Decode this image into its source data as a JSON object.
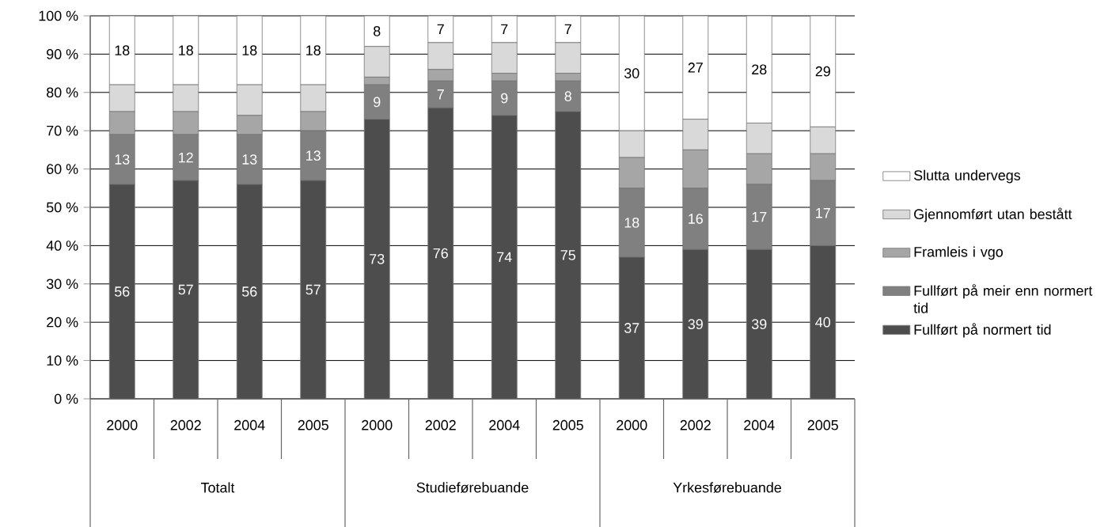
{
  "chart_data": {
    "type": "bar",
    "stacked": true,
    "categories": [
      "2000",
      "2002",
      "2004",
      "2005",
      "2000",
      "2002",
      "2004",
      "2005",
      "2000",
      "2002",
      "2004",
      "2005"
    ],
    "annotations": [
      "Totalt",
      "Studieførebuande",
      "Yrkesførebuande"
    ],
    "series": [
      {
        "name": "Fullført på normert tid",
        "color": "#4d4d4d",
        "values": [
          56,
          57,
          56,
          57,
          73,
          76,
          74,
          75,
          37,
          39,
          39,
          40
        ],
        "value_labels": [
          "56",
          "57",
          "56",
          "57",
          "73",
          "76",
          "74",
          "75",
          "37",
          "39",
          "39",
          "40"
        ]
      },
      {
        "name": "Fullført på meir enn normert tid",
        "color": "#808080",
        "values": [
          13,
          12,
          13,
          13,
          9,
          7,
          9,
          8,
          18,
          16,
          17,
          17
        ],
        "value_labels": [
          "13",
          "12",
          "13",
          "13",
          "9",
          "7",
          "9",
          "8",
          "18",
          "16",
          "17",
          "17"
        ]
      },
      {
        "name": "Framleis i vgo",
        "color": "#a6a6a6",
        "values": [
          6,
          6,
          5,
          5,
          2,
          3,
          2,
          2,
          8,
          10,
          8,
          7
        ]
      },
      {
        "name": "Gjennomført utan bestått",
        "color": "#d9d9d9",
        "values": [
          7,
          7,
          8,
          7,
          8,
          7,
          8,
          8,
          7,
          8,
          8,
          7
        ]
      },
      {
        "name": "Slutta undervegs",
        "color": "#ffffff",
        "values": [
          18,
          18,
          18,
          18,
          8,
          7,
          7,
          7,
          30,
          27,
          28,
          29
        ],
        "value_labels": [
          "18",
          "18",
          "18",
          "18",
          "8",
          "7",
          "7",
          "7",
          "30",
          "27",
          "28",
          "29"
        ]
      }
    ],
    "ylim": [
      0,
      100
    ],
    "yticks": [
      {
        "value": 0,
        "label": "0 %"
      },
      {
        "value": 10,
        "label": "10 %"
      },
      {
        "value": 20,
        "label": "20 %"
      },
      {
        "value": 30,
        "label": "30 %"
      },
      {
        "value": 40,
        "label": "40 %"
      },
      {
        "value": 50,
        "label": "50 %"
      },
      {
        "value": 60,
        "label": "60 %"
      },
      {
        "value": 70,
        "label": "70 %"
      },
      {
        "value": 80,
        "label": "80 %"
      },
      {
        "value": 90,
        "label": "90 %"
      },
      {
        "value": 100,
        "label": "100 %"
      }
    ],
    "grid": "y",
    "legend": "right"
  }
}
